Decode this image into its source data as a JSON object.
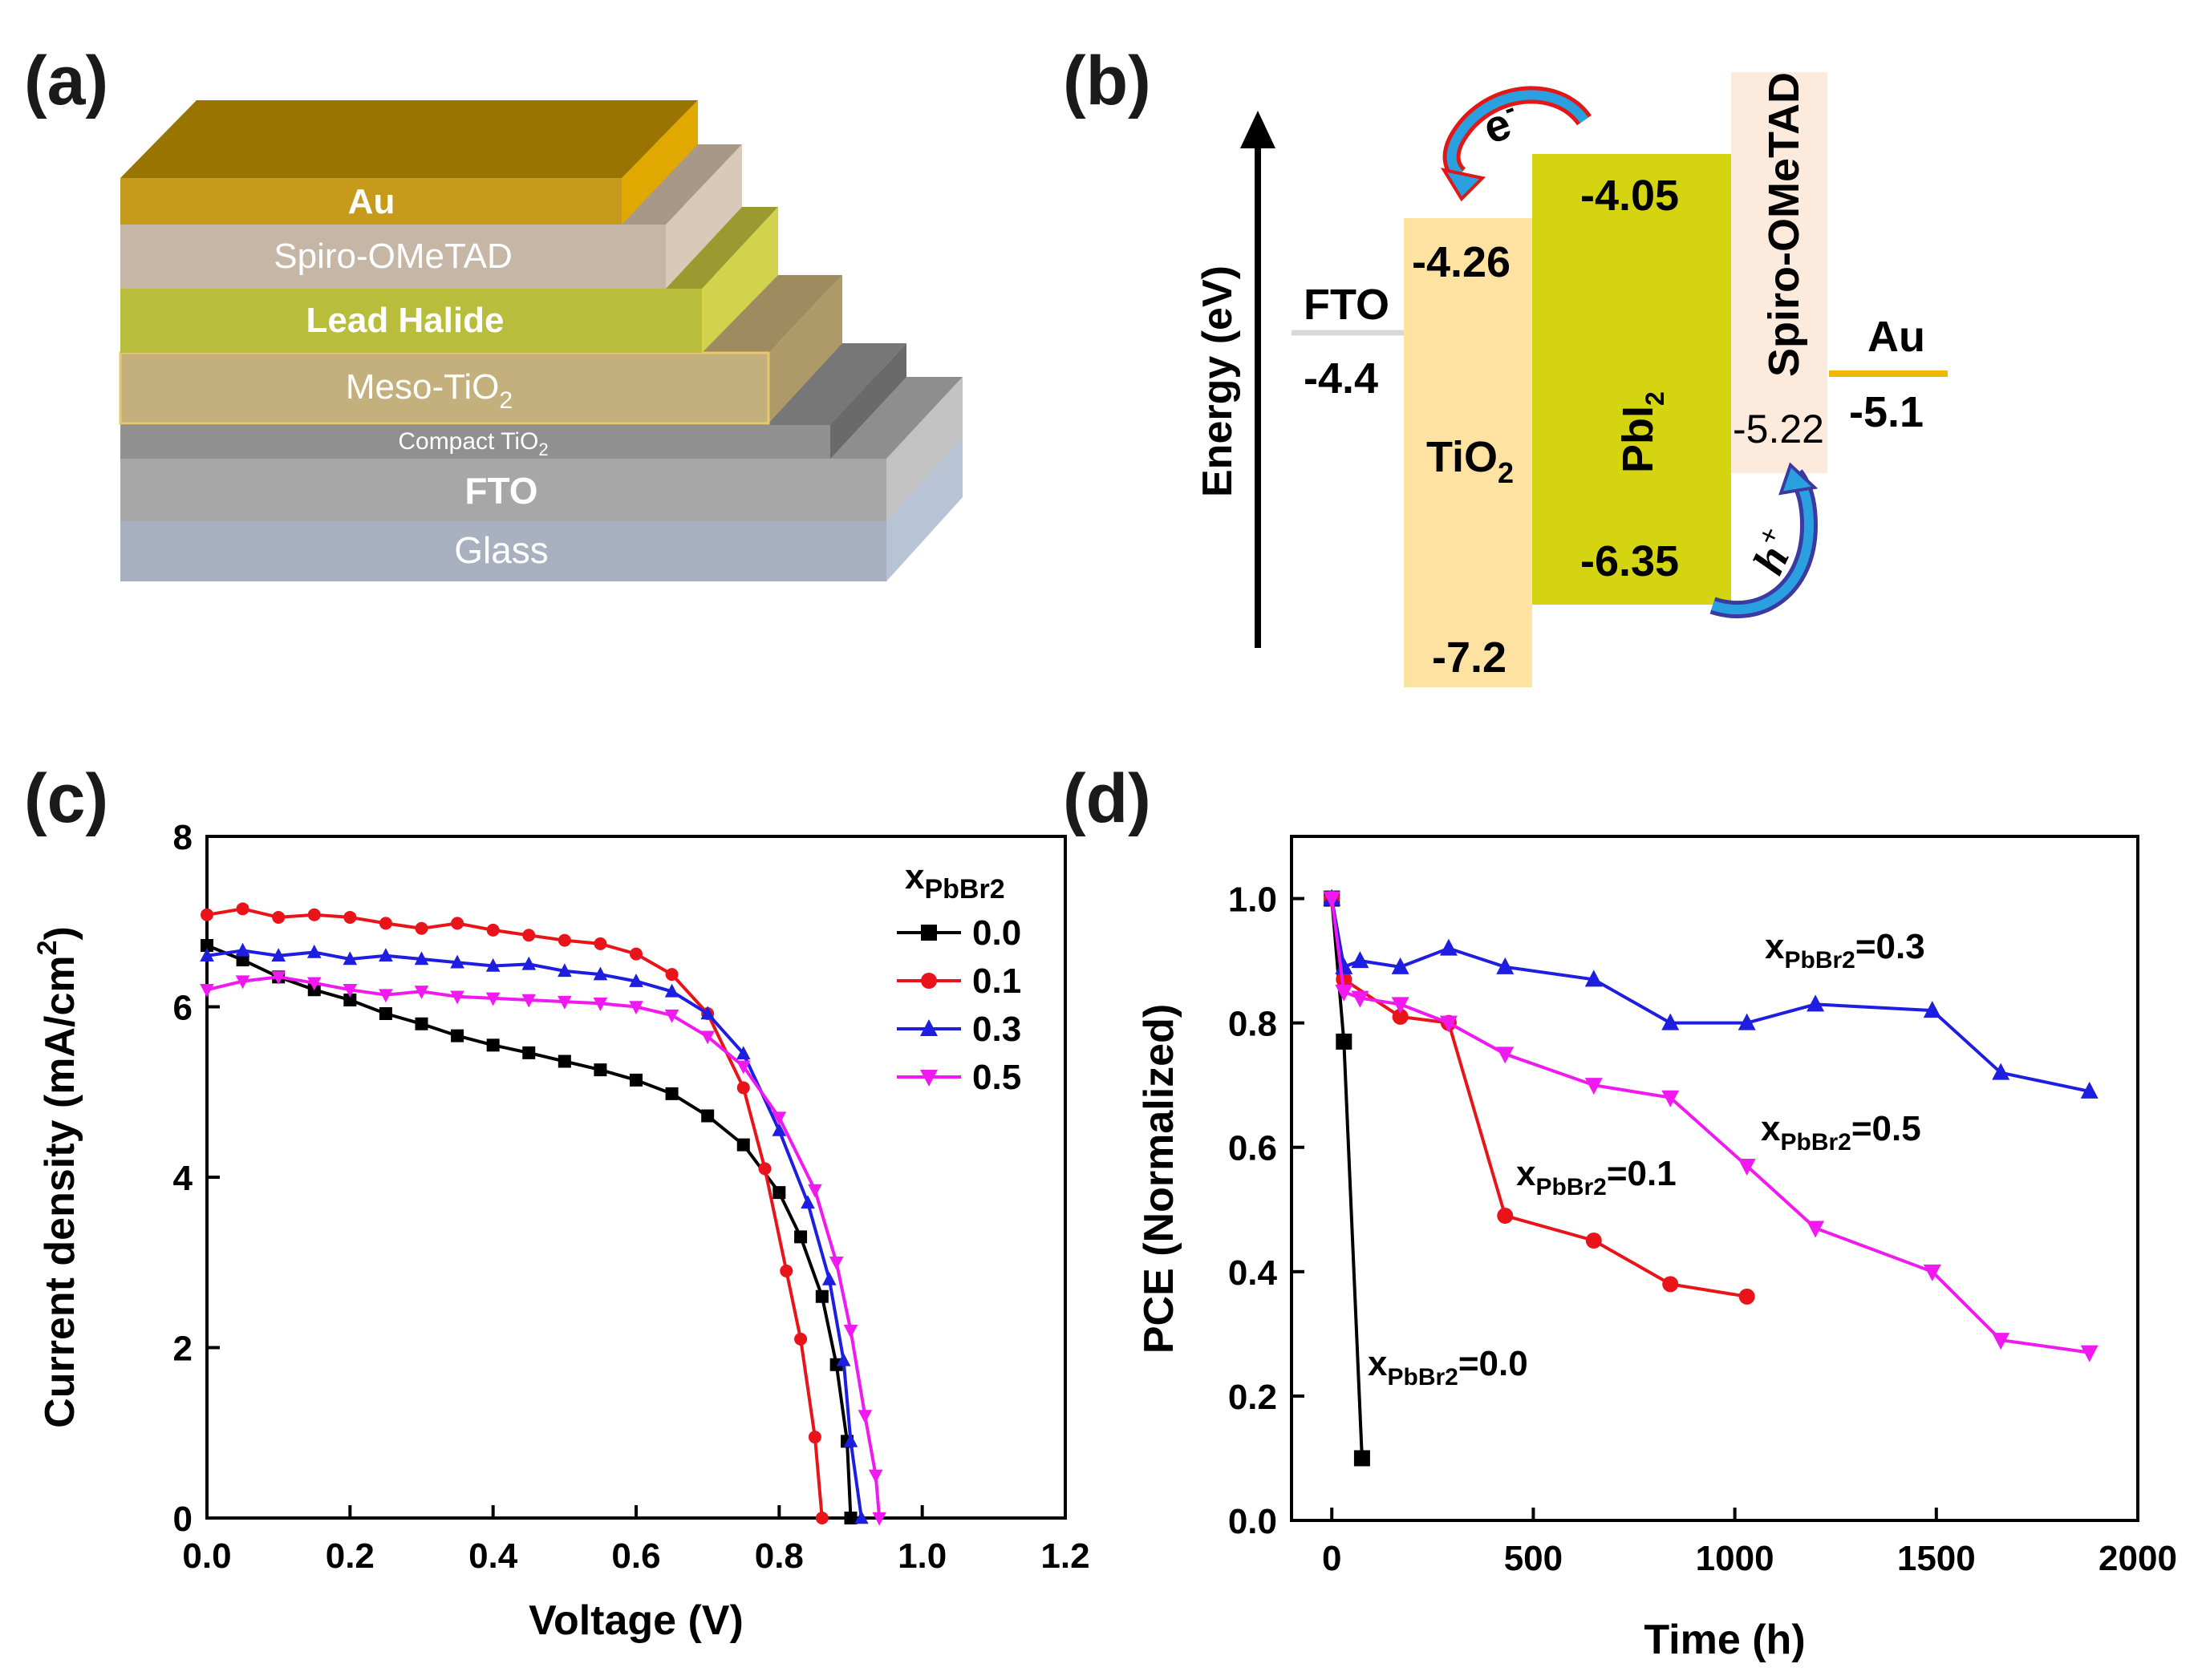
{
  "panels": {
    "a": "(a)",
    "b": "(b)",
    "c": "(c)",
    "d": "(d)"
  },
  "device_stack": {
    "layers": [
      {
        "name": "Au",
        "color": "#c69a1a",
        "bold": true
      },
      {
        "name": "Spiro-OMeTAD",
        "color": "#c6b6a6",
        "bold": false
      },
      {
        "name": "Lead Halide",
        "color": "#b9bd3c",
        "bold": true
      },
      {
        "name": "Meso-TiO",
        "sub": "2",
        "color": "#c4b07c",
        "bold": false
      },
      {
        "name": "Compact TiO",
        "sub": "2",
        "color": "#909090",
        "bold": false
      },
      {
        "name": "FTO",
        "color": "#a7a7a7",
        "bold": true
      },
      {
        "name": "Glass",
        "color": "#a9b1c0",
        "bold": false
      }
    ]
  },
  "energy_diagram": {
    "axis_title": "Energy (eV)",
    "fto": {
      "label": "FTO",
      "value": "-4.4"
    },
    "tio2": {
      "label": "TiO",
      "sub": "2",
      "cb": "-4.26",
      "vb": "-7.2"
    },
    "pbi2": {
      "label": "PbI",
      "sub": "2",
      "cb": "-4.05",
      "vb": "-6.35"
    },
    "spiro": {
      "label": "Spiro-OMeTAD",
      "homo": "-5.22"
    },
    "au": {
      "label": "Au",
      "value": "-5.1"
    },
    "electron": "e",
    "electron_sup": "-",
    "hole": "h",
    "hole_sup": "+"
  },
  "chart_data": [
    {
      "type": "line",
      "title": "",
      "xlabel": "Voltage (V)",
      "ylabel": "Current density (mA/cm",
      "ylabel_sup": "2",
      "ylabel_end": ")",
      "xlim": [
        0.0,
        1.2
      ],
      "ylim": [
        0,
        8
      ],
      "xticks": [
        "0.0",
        "0.2",
        "0.4",
        "0.6",
        "0.8",
        "1.0",
        "1.2"
      ],
      "yticks": [
        "0",
        "2",
        "4",
        "6",
        "8"
      ],
      "legend_title": "x",
      "legend_title_sub": "PbBr2",
      "series": [
        {
          "name": "0.0",
          "color": "#000000",
          "marker": "square",
          "points": [
            [
              0.0,
              6.72
            ],
            [
              0.05,
              6.55
            ],
            [
              0.1,
              6.35
            ],
            [
              0.15,
              6.2
            ],
            [
              0.2,
              6.08
            ],
            [
              0.25,
              5.92
            ],
            [
              0.3,
              5.8
            ],
            [
              0.35,
              5.66
            ],
            [
              0.4,
              5.55
            ],
            [
              0.45,
              5.46
            ],
            [
              0.5,
              5.36
            ],
            [
              0.55,
              5.26
            ],
            [
              0.6,
              5.14
            ],
            [
              0.65,
              4.98
            ],
            [
              0.7,
              4.72
            ],
            [
              0.75,
              4.38
            ],
            [
              0.8,
              3.82
            ],
            [
              0.83,
              3.3
            ],
            [
              0.86,
              2.6
            ],
            [
              0.88,
              1.8
            ],
            [
              0.895,
              0.9
            ],
            [
              0.9,
              0.0
            ]
          ]
        },
        {
          "name": "0.1",
          "color": "#e8141a",
          "marker": "circle",
          "points": [
            [
              0.0,
              7.08
            ],
            [
              0.05,
              7.15
            ],
            [
              0.1,
              7.05
            ],
            [
              0.15,
              7.08
            ],
            [
              0.2,
              7.05
            ],
            [
              0.25,
              6.98
            ],
            [
              0.3,
              6.92
            ],
            [
              0.35,
              6.98
            ],
            [
              0.4,
              6.9
            ],
            [
              0.45,
              6.84
            ],
            [
              0.5,
              6.78
            ],
            [
              0.55,
              6.74
            ],
            [
              0.6,
              6.62
            ],
            [
              0.65,
              6.38
            ],
            [
              0.7,
              5.92
            ],
            [
              0.75,
              5.05
            ],
            [
              0.78,
              4.1
            ],
            [
              0.81,
              2.9
            ],
            [
              0.83,
              2.1
            ],
            [
              0.85,
              0.95
            ],
            [
              0.86,
              0.0
            ]
          ]
        },
        {
          "name": "0.3",
          "color": "#1e1ee0",
          "marker": "triangle",
          "points": [
            [
              0.0,
              6.6
            ],
            [
              0.05,
              6.66
            ],
            [
              0.1,
              6.6
            ],
            [
              0.15,
              6.64
            ],
            [
              0.2,
              6.56
            ],
            [
              0.25,
              6.6
            ],
            [
              0.3,
              6.56
            ],
            [
              0.35,
              6.52
            ],
            [
              0.4,
              6.48
            ],
            [
              0.45,
              6.5
            ],
            [
              0.5,
              6.42
            ],
            [
              0.55,
              6.38
            ],
            [
              0.6,
              6.3
            ],
            [
              0.65,
              6.18
            ],
            [
              0.7,
              5.92
            ],
            [
              0.75,
              5.45
            ],
            [
              0.8,
              4.55
            ],
            [
              0.84,
              3.7
            ],
            [
              0.87,
              2.8
            ],
            [
              0.89,
              1.85
            ],
            [
              0.9,
              0.9
            ],
            [
              0.915,
              0.0
            ]
          ]
        },
        {
          "name": "0.5",
          "color": "#f019f0",
          "marker": "triangle-down",
          "points": [
            [
              0.0,
              6.2
            ],
            [
              0.05,
              6.3
            ],
            [
              0.1,
              6.35
            ],
            [
              0.15,
              6.28
            ],
            [
              0.2,
              6.2
            ],
            [
              0.25,
              6.14
            ],
            [
              0.3,
              6.18
            ],
            [
              0.35,
              6.12
            ],
            [
              0.4,
              6.1
            ],
            [
              0.45,
              6.08
            ],
            [
              0.5,
              6.06
            ],
            [
              0.55,
              6.04
            ],
            [
              0.6,
              6.0
            ],
            [
              0.65,
              5.9
            ],
            [
              0.7,
              5.65
            ],
            [
              0.75,
              5.3
            ],
            [
              0.8,
              4.7
            ],
            [
              0.85,
              3.85
            ],
            [
              0.88,
              3.0
            ],
            [
              0.9,
              2.2
            ],
            [
              0.92,
              1.2
            ],
            [
              0.935,
              0.5
            ],
            [
              0.94,
              0.0
            ]
          ]
        }
      ]
    },
    {
      "type": "line",
      "title": "",
      "xlabel": "Time (h)",
      "ylabel": "PCE (Normalized)",
      "xlim": [
        -100,
        2000
      ],
      "ylim": [
        0.0,
        1.1
      ],
      "xticks": [
        "0",
        "500",
        "1000",
        "1500",
        "2000"
      ],
      "xtick_values": [
        0,
        500,
        1000,
        1500,
        2000
      ],
      "yticks": [
        "0.0",
        "0.2",
        "0.4",
        "0.6",
        "0.8",
        "1.0"
      ],
      "ytick_values": [
        0.0,
        0.2,
        0.4,
        0.6,
        0.8,
        1.0
      ],
      "annotation_prefix": "x",
      "annotation_sub": "PbBr2",
      "series": [
        {
          "name": "=0.0",
          "color": "#000000",
          "marker": "square",
          "points": [
            [
              0,
              1.0
            ],
            [
              30,
              0.77
            ],
            [
              75,
              0.1
            ]
          ]
        },
        {
          "name": "=0.1",
          "color": "#e8141a",
          "marker": "circle",
          "points": [
            [
              0,
              1.0
            ],
            [
              30,
              0.87
            ],
            [
              170,
              0.81
            ],
            [
              290,
              0.8
            ],
            [
              430,
              0.49
            ],
            [
              650,
              0.45
            ],
            [
              840,
              0.38
            ],
            [
              1030,
              0.36
            ]
          ]
        },
        {
          "name": "=0.3",
          "color": "#1e1ee0",
          "marker": "triangle",
          "points": [
            [
              0,
              1.0
            ],
            [
              30,
              0.89
            ],
            [
              70,
              0.9
            ],
            [
              170,
              0.89
            ],
            [
              290,
              0.92
            ],
            [
              430,
              0.89
            ],
            [
              650,
              0.87
            ],
            [
              840,
              0.8
            ],
            [
              1030,
              0.8
            ],
            [
              1200,
              0.83
            ],
            [
              1490,
              0.82
            ],
            [
              1660,
              0.72
            ],
            [
              1880,
              0.69
            ]
          ]
        },
        {
          "name": "=0.5",
          "color": "#f019f0",
          "marker": "triangle-down",
          "points": [
            [
              0,
              1.0
            ],
            [
              30,
              0.85
            ],
            [
              70,
              0.84
            ],
            [
              170,
              0.83
            ],
            [
              290,
              0.8
            ],
            [
              430,
              0.75
            ],
            [
              650,
              0.7
            ],
            [
              840,
              0.68
            ],
            [
              1030,
              0.57
            ],
            [
              1200,
              0.47
            ],
            [
              1490,
              0.4
            ],
            [
              1660,
              0.29
            ],
            [
              1880,
              0.27
            ]
          ]
        }
      ]
    }
  ]
}
